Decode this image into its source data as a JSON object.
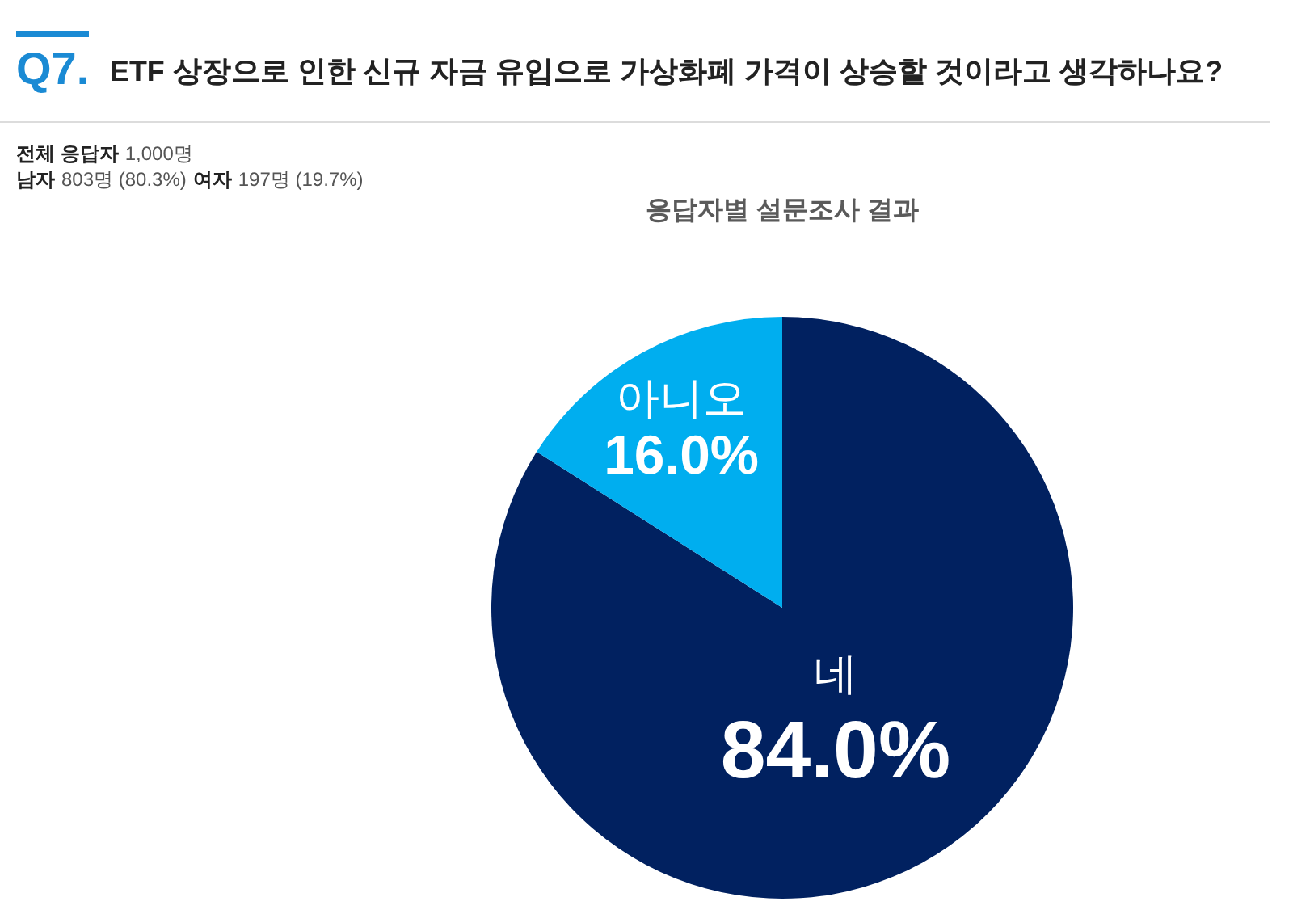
{
  "chart_data": {
    "type": "pie",
    "title": "ETF 상장으로 인한 신규 자금 유입으로 가상화폐 가격이 상승할 것이라고 생각하나요?",
    "subtitle": "응답자별 설문조사 결과",
    "annotations": [
      "Q7.",
      "전체 응답자",
      "1,000명",
      "남자",
      "803명 (80.3%)",
      "여자",
      "197명 (19.7%)"
    ],
    "categories": [
      "네",
      "아니오"
    ],
    "values": [
      84.0,
      16.0
    ],
    "colors": [
      "#012160",
      "#00aeef"
    ],
    "value_labels": [
      "84.0%",
      "16.0%"
    ]
  }
}
